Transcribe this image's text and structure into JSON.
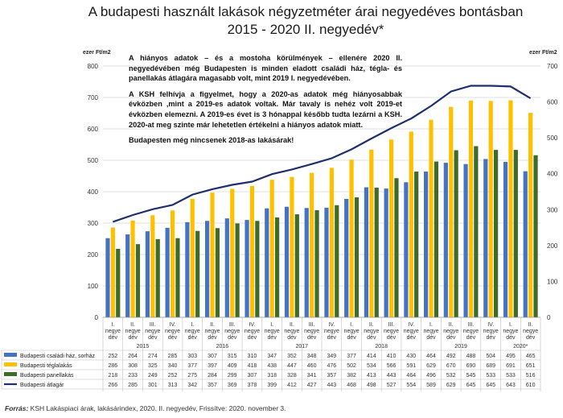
{
  "header": {
    "title_line1": "A budapesti használt lakások négyzetméter árai negyedéves bontásban",
    "title_line2": "2015 - 2020 II. negyedév*"
  },
  "axes": {
    "left_unit": "ezer Ft/m2",
    "right_unit": "ezer Ft/m2"
  },
  "annotation": {
    "p1": "A hiányos adatok – és a mostoha körülmények – ellenére 2020 II. negyedévében még Budapesten is minden eladott családi ház, tégla- és panellakás átlagára magasabb volt, mint 2019 I. negyedévében.",
    "p2": "A KSH felhívja a figyelmet, hogy a 2020-as adatok még hiányosabbak évközben ,mint a 2019-es adatok voltak. Már tavaly is nehéz volt 2019-et évközben elemezni. A 2019-es évet is 3 hónappal később tudta lezárni a KSH. 2020-at meg szinte már lehetetlen értékelni a hiányos adatok miatt.",
    "p3": "Budapesten még nincsenek 2018-as lakásárak!"
  },
  "source": {
    "label": "Forrás:",
    "text": " KSH Lakáspiaci árak, lakásárindex, 2020. II. negyedév, Frissítve: 2020. november 3."
  },
  "chart_data": {
    "type": "bar",
    "quarter_labels": [
      "I.",
      "II.",
      "III.",
      "IV.",
      "I.",
      "II.",
      "III.",
      "IV.",
      "I.",
      "II.",
      "III.",
      "IV.",
      "I.",
      "II.",
      "III.",
      "IV.",
      "I.",
      "II.",
      "III.",
      "IV.",
      "I.",
      "II."
    ],
    "quarter_suffix": "negyedév",
    "years": [
      {
        "label": "2015",
        "quarters": 4
      },
      {
        "label": "2016",
        "quarters": 4
      },
      {
        "label": "2017",
        "quarters": 4
      },
      {
        "label": "2018",
        "quarters": 4
      },
      {
        "label": "2019",
        "quarters": 4
      },
      {
        "label": "2020*",
        "quarters": 2
      }
    ],
    "left_axis": {
      "min": 0,
      "max": 800,
      "step": 100
    },
    "right_axis": {
      "min": 0,
      "max": 700,
      "step": 100
    },
    "series": [
      {
        "name": "Budapesti családi ház, sorház",
        "kind": "bar",
        "axis": "left",
        "color": "#4472c4",
        "values": [
          252,
          264,
          274,
          285,
          303,
          307,
          315,
          310,
          347,
          352,
          348,
          349,
          377,
          414,
          410,
          430,
          464,
          492,
          488,
          504,
          495,
          465
        ]
      },
      {
        "name": "Budapesti téglalakás",
        "kind": "bar",
        "axis": "left",
        "color": "#ffc000",
        "values": [
          286,
          308,
          325,
          340,
          377,
          397,
          409,
          418,
          438,
          447,
          460,
          476,
          502,
          534,
          566,
          591,
          629,
          670,
          690,
          689,
          691,
          651
        ]
      },
      {
        "name": "Budapesti panellakás",
        "kind": "bar",
        "axis": "left",
        "color": "#3f6b2a",
        "values": [
          218,
          233,
          249,
          252,
          275,
          284,
          299,
          307,
          318,
          328,
          341,
          357,
          382,
          413,
          443,
          464,
          496,
          532,
          545,
          533,
          533,
          516
        ]
      },
      {
        "name": "Budapesti átlagár",
        "kind": "line",
        "axis": "right",
        "color": "#1f2f6e",
        "values": [
          266,
          285,
          301,
          313,
          342,
          357,
          369,
          378,
          399,
          412,
          427,
          443,
          468,
          498,
          527,
          554,
          589,
          629,
          645,
          645,
          643,
          610
        ]
      }
    ]
  }
}
